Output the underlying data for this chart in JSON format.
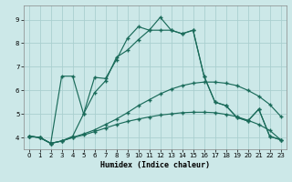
{
  "xlabel": "Humidex (Indice chaleur)",
  "bg_color": "#cce8e8",
  "grid_color": "#aacfcf",
  "line_color": "#1a6b5a",
  "xlim": [
    -0.5,
    23.5
  ],
  "ylim": [
    3.5,
    9.6
  ],
  "yticks": [
    4,
    5,
    6,
    7,
    8,
    9
  ],
  "xticks": [
    0,
    1,
    2,
    3,
    4,
    5,
    6,
    7,
    8,
    9,
    10,
    11,
    12,
    13,
    14,
    15,
    16,
    17,
    18,
    19,
    20,
    21,
    22,
    23
  ],
  "line1_x": [
    0,
    1,
    2,
    3,
    4,
    5,
    6,
    7,
    8,
    9,
    10,
    11,
    12,
    13,
    14,
    15,
    16,
    17,
    18,
    19,
    20,
    21,
    22,
    23
  ],
  "line1_y": [
    4.05,
    4.0,
    3.75,
    3.85,
    4.0,
    4.1,
    4.25,
    4.4,
    4.55,
    4.68,
    4.78,
    4.87,
    4.95,
    5.0,
    5.05,
    5.07,
    5.07,
    5.05,
    4.98,
    4.88,
    4.73,
    4.55,
    4.3,
    3.9
  ],
  "line2_x": [
    0,
    1,
    2,
    3,
    4,
    5,
    6,
    7,
    8,
    9,
    10,
    11,
    12,
    13,
    14,
    15,
    16,
    17,
    18,
    19,
    20,
    21,
    22,
    23
  ],
  "line2_y": [
    4.05,
    4.0,
    3.75,
    3.85,
    4.0,
    4.15,
    4.32,
    4.55,
    4.78,
    5.05,
    5.35,
    5.6,
    5.85,
    6.05,
    6.2,
    6.3,
    6.35,
    6.35,
    6.3,
    6.2,
    6.0,
    5.75,
    5.4,
    4.9
  ],
  "line3_x": [
    0,
    1,
    2,
    3,
    4,
    5,
    6,
    7,
    8,
    9,
    10,
    11,
    12,
    13,
    14,
    15,
    16,
    17,
    18,
    19,
    20,
    21,
    22,
    23
  ],
  "line3_y": [
    4.05,
    4.0,
    3.75,
    3.85,
    4.05,
    5.0,
    6.55,
    6.5,
    7.3,
    8.2,
    8.7,
    8.55,
    9.1,
    8.55,
    8.4,
    8.55,
    6.6,
    5.5,
    5.35,
    4.85,
    4.7,
    5.2,
    4.05,
    3.9
  ],
  "line4_x": [
    0,
    1,
    2,
    3,
    4,
    5,
    6,
    7,
    8,
    9,
    10,
    11,
    12,
    13,
    14,
    15,
    16,
    17,
    18,
    19,
    20,
    21,
    22,
    23
  ],
  "line4_y": [
    4.05,
    4.0,
    3.75,
    6.6,
    6.6,
    5.0,
    5.9,
    6.4,
    7.4,
    7.7,
    8.15,
    8.55,
    8.55,
    8.55,
    8.4,
    8.55,
    6.6,
    5.5,
    5.35,
    4.85,
    4.7,
    5.2,
    4.05,
    3.9
  ]
}
